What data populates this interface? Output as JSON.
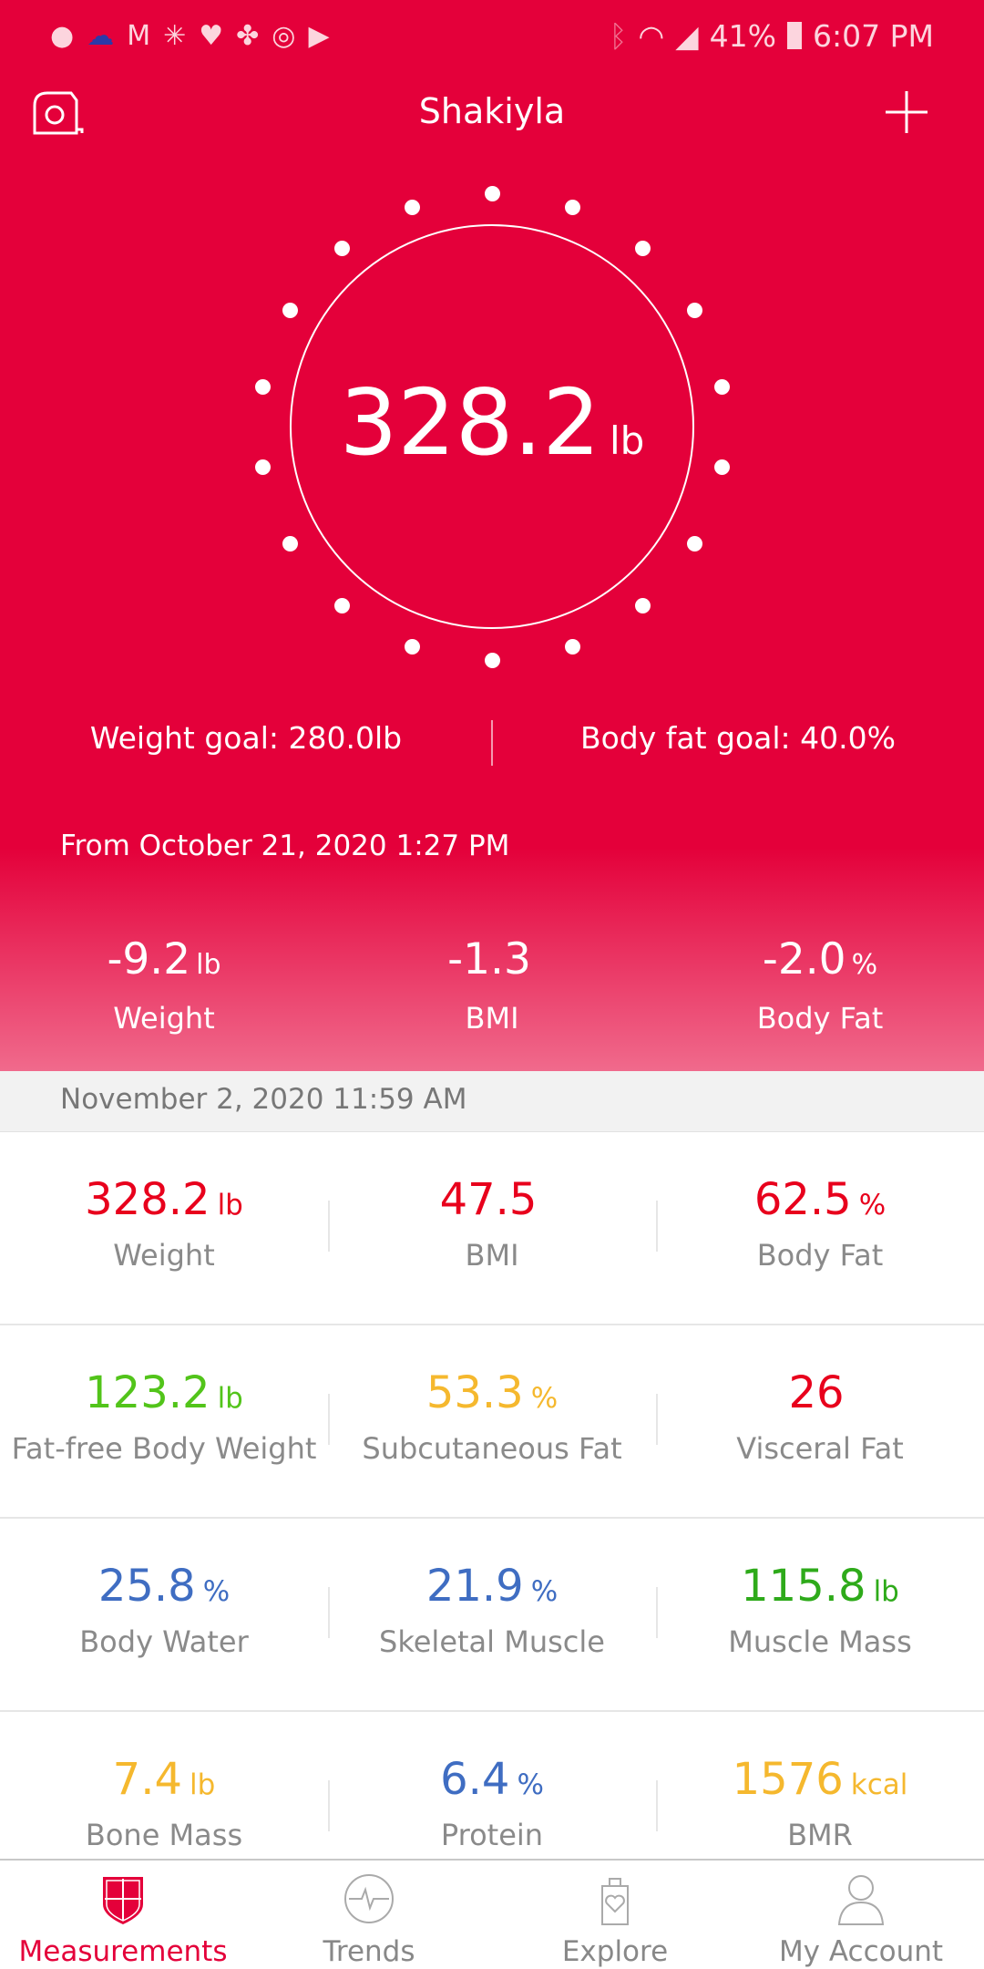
{
  "status_bar": {
    "notification_icons": [
      "facebook-icon",
      "cloud-icon",
      "gmail-icon",
      "walmart-icon",
      "hearts-icon",
      "pinwheel-icon",
      "instagram-icon",
      "youtube-icon"
    ],
    "battery": "41%",
    "time": "6:07 PM"
  },
  "header": {
    "title": "Shakiyla"
  },
  "current": {
    "weight": "328.2",
    "unit": "lb"
  },
  "goals": {
    "weight": "Weight goal: 280.0lb",
    "body_fat": "Body fat goal: 40.0%"
  },
  "from_label": "From October 21, 2020 1:27 PM",
  "deltas": [
    {
      "value": "-9.2",
      "unit": "lb",
      "label": "Weight"
    },
    {
      "value": "-1.3",
      "unit": "",
      "label": "BMI"
    },
    {
      "value": "-2.0",
      "unit": "%",
      "label": "Body Fat"
    }
  ],
  "date": "November 2, 2020 11:59 AM",
  "colors": {
    "brand": "#e4003a",
    "red": "#e8001c",
    "green": "#52c41a",
    "yellow": "#f5b82e",
    "blue": "#3f6dc2"
  },
  "metrics": [
    [
      {
        "value": "328.2",
        "unit": "lb",
        "label": "Weight",
        "color": "#e8001c"
      },
      {
        "value": "47.5",
        "unit": "",
        "label": "BMI",
        "color": "#e8001c"
      },
      {
        "value": "62.5",
        "unit": "%",
        "label": "Body Fat",
        "color": "#e8001c"
      }
    ],
    [
      {
        "value": "123.2",
        "unit": "lb",
        "label": "Fat-free Body Weight",
        "color": "#52c41a"
      },
      {
        "value": "53.3",
        "unit": "%",
        "label": "Subcutaneous Fat",
        "color": "#f5b82e"
      },
      {
        "value": "26",
        "unit": "",
        "label": "Visceral Fat",
        "color": "#e8001c"
      }
    ],
    [
      {
        "value": "25.8",
        "unit": "%",
        "label": "Body Water",
        "color": "#3f6dc2"
      },
      {
        "value": "21.9",
        "unit": "%",
        "label": "Skeletal Muscle",
        "color": "#3f6dc2"
      },
      {
        "value": "115.8",
        "unit": "lb",
        "label": "Muscle Mass",
        "color": "#2eaa1a"
      }
    ],
    [
      {
        "value": "7.4",
        "unit": "lb",
        "label": "Bone Mass",
        "color": "#f5b82e"
      },
      {
        "value": "6.4",
        "unit": "%",
        "label": "Protein",
        "color": "#3f6dc2"
      },
      {
        "value": "1576",
        "unit": "kcal",
        "label": "BMR",
        "color": "#f5b82e"
      }
    ]
  ],
  "nav": [
    {
      "label": "Measurements",
      "active": true
    },
    {
      "label": "Trends"
    },
    {
      "label": "Explore"
    },
    {
      "label": "My Account"
    }
  ]
}
